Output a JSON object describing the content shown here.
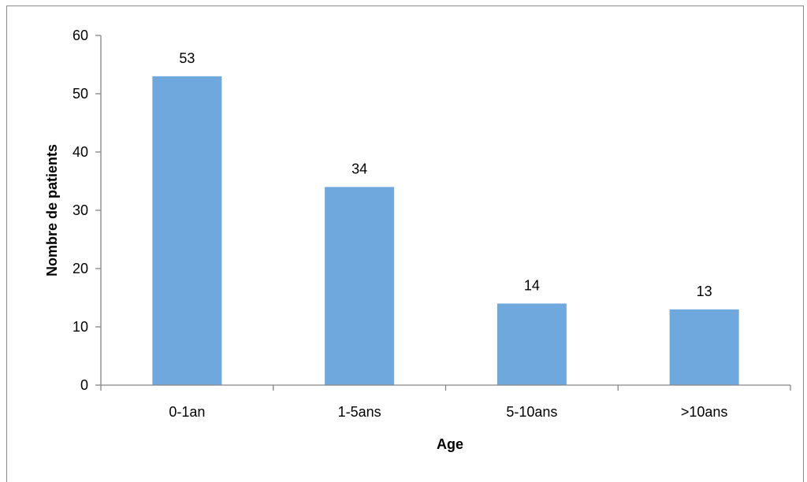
{
  "chart_data": {
    "type": "bar",
    "title": "",
    "xlabel": "Age",
    "ylabel": "Nombre de patients",
    "categories": [
      "0-1an",
      "1-5ans",
      "5-10ans",
      ">10ans"
    ],
    "values": [
      53,
      34,
      14,
      13
    ],
    "data_labels": [
      "53",
      "34",
      "14",
      "13"
    ],
    "ylim": [
      0,
      60
    ],
    "yticks": [
      0,
      10,
      20,
      30,
      40,
      50,
      60
    ],
    "grid": false,
    "legend": "none",
    "bar_color": "#6FA8DC",
    "axis_color": "#868686"
  }
}
